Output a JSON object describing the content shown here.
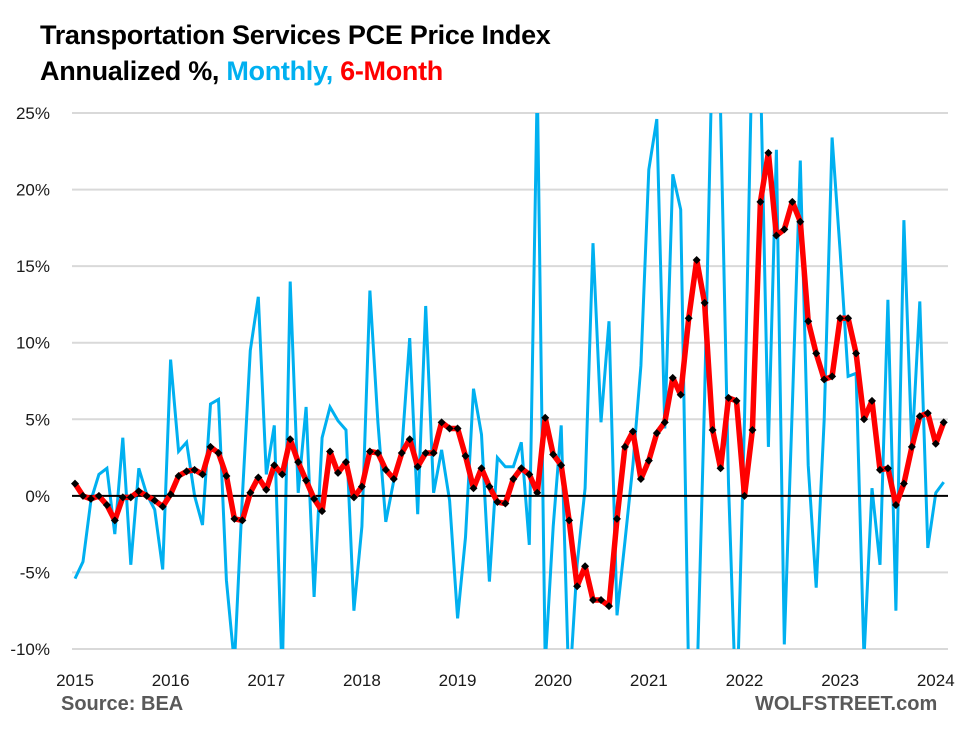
{
  "title_line1": "Transportation Services PCE Price Index",
  "title_line2_prefix": "Annualized %, ",
  "title_line2_monthly": "Monthly,",
  "title_line2_six": " 6-Month",
  "footer": {
    "source": "Source: BEA",
    "brand": "WOLFSTREET.com"
  },
  "colors": {
    "monthly": "#00b0f0",
    "six_month": "#ff0000",
    "markers": "#000000",
    "grid": "#d9d9d9",
    "zero_line": "#000000"
  },
  "chart_data": {
    "type": "line",
    "title": "Transportation Services PCE Price Index — Annualized %, Monthly, 6-Month",
    "xlabel": "",
    "ylabel": "",
    "x_start": "2015-01",
    "x_end": "2024-02",
    "x_tick_labels": [
      "2015",
      "2016",
      "2017",
      "2018",
      "2019",
      "2020",
      "2021",
      "2022",
      "2023",
      "2024"
    ],
    "y_tick_labels": [
      "25%",
      "20%",
      "15%",
      "10%",
      "5%",
      "0%",
      "-5%",
      "-10%"
    ],
    "y_ticks": [
      25,
      20,
      15,
      10,
      5,
      0,
      -5,
      -10
    ],
    "ylim": [
      -10,
      25
    ],
    "grid": true,
    "series": [
      {
        "name": "Monthly",
        "color": "#00b0f0",
        "values": [
          -5.4,
          -4.3,
          -0.3,
          1.4,
          1.8,
          -2.5,
          3.8,
          -4.5,
          1.8,
          0.1,
          -0.9,
          -4.8,
          8.9,
          2.9,
          3.5,
          0.0,
          -1.9,
          6.0,
          6.3,
          -5.5,
          -11.0,
          0.0,
          9.5,
          13.0,
          1.4,
          4.6,
          -12.0,
          14.0,
          0.2,
          5.8,
          -6.6,
          3.8,
          5.8,
          4.9,
          4.3,
          -7.5,
          -2.0,
          13.4,
          4.8,
          -1.7,
          1.0,
          3.0,
          10.3,
          -1.2,
          12.4,
          0.2,
          3.0,
          -0.3,
          -8.0,
          -2.7,
          7.0,
          4.0,
          -5.6,
          2.5,
          1.9,
          1.9,
          3.5,
          -3.2,
          27.0,
          -11.0,
          -2.0,
          4.6,
          -13.0,
          -4.5,
          0.5,
          16.5,
          4.8,
          11.4,
          -7.8,
          -3.0,
          2.0,
          8.5,
          21.3,
          24.6,
          4.4,
          21.0,
          18.7,
          -12.0,
          -13.0,
          6.4,
          30.0,
          25.0,
          0.8,
          -15.0,
          5.0,
          30.0,
          28.0,
          3.2,
          22.6,
          -9.7,
          5.8,
          21.9,
          2.0,
          -6.0,
          5.0,
          23.4,
          16.0,
          7.8,
          8.0,
          -10.6,
          0.5,
          -4.5,
          12.8,
          -7.5,
          18.0,
          3.0,
          12.7,
          -3.4,
          0.2,
          0.9
        ]
      },
      {
        "name": "6-Month",
        "color": "#ff0000",
        "markers": true,
        "values": [
          0.8,
          0.0,
          -0.2,
          0.0,
          -0.6,
          -1.6,
          -0.1,
          -0.1,
          0.3,
          0.0,
          -0.3,
          -0.7,
          0.1,
          1.3,
          1.6,
          1.7,
          1.4,
          3.2,
          2.8,
          1.3,
          -1.5,
          -1.6,
          0.2,
          1.2,
          0.4,
          2.0,
          1.4,
          3.7,
          2.2,
          1.0,
          -0.2,
          -1.0,
          2.9,
          1.5,
          2.2,
          -0.1,
          0.6,
          2.9,
          2.8,
          1.7,
          1.1,
          2.8,
          3.7,
          1.9,
          2.8,
          2.8,
          4.8,
          4.4,
          4.4,
          2.6,
          0.5,
          1.8,
          0.6,
          -0.4,
          -0.5,
          1.1,
          1.8,
          1.4,
          0.2,
          5.1,
          2.7,
          2.0,
          -1.6,
          -5.9,
          -4.6,
          -6.8,
          -6.8,
          -7.2,
          -1.5,
          3.2,
          4.2,
          1.1,
          2.3,
          4.1,
          4.8,
          7.7,
          6.6,
          11.6,
          15.4,
          12.6,
          4.3,
          1.8,
          6.4,
          6.2,
          0.0,
          4.3,
          19.2,
          22.4,
          17.0,
          17.4,
          19.2,
          17.9,
          11.4,
          9.3,
          7.6,
          7.8,
          11.6,
          11.6,
          9.3,
          5.0,
          6.2,
          1.7,
          1.8,
          -0.6,
          0.8,
          3.2,
          5.2,
          5.4,
          3.4,
          4.8
        ]
      }
    ]
  }
}
